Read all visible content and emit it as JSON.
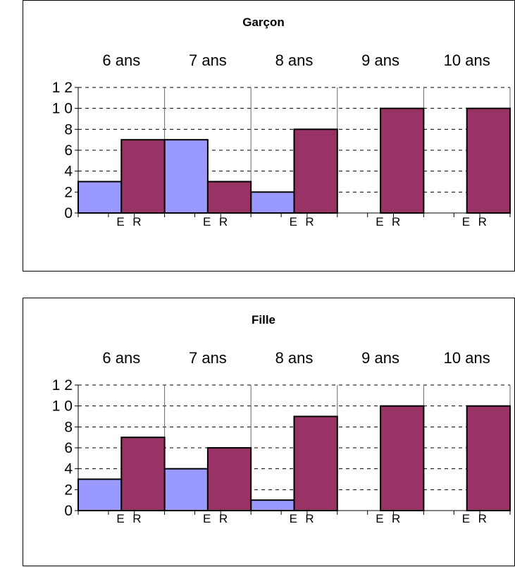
{
  "chart_data": [
    {
      "type": "bar",
      "title": "Garçon",
      "categories": [
        "6 ans",
        "7 ans",
        "8 ans",
        "9 ans",
        "10 ans"
      ],
      "sub_labels": [
        "E",
        "R"
      ],
      "series": [
        {
          "values": [
            3,
            7,
            2,
            0,
            0
          ]
        },
        {
          "values": [
            7,
            3,
            8,
            10,
            10
          ]
        }
      ],
      "ylim": [
        0,
        12
      ],
      "yticks": [
        "0",
        "2",
        "4",
        "6",
        "8",
        "1 0",
        "1 2"
      ],
      "grid": true,
      "colors": {
        "E": "#9999ff",
        "R": "#993366"
      }
    },
    {
      "type": "bar",
      "title": "Fille",
      "categories": [
        "6 ans",
        "7 ans",
        "8 ans",
        "9 ans",
        "10 ans"
      ],
      "sub_labels": [
        "E",
        "R"
      ],
      "series": [
        {
          "values": [
            3,
            4,
            1,
            0,
            0
          ]
        },
        {
          "values": [
            7,
            6,
            9,
            10,
            10
          ]
        }
      ],
      "ylim": [
        0,
        12
      ],
      "yticks": [
        "0",
        "2",
        "4",
        "6",
        "8",
        "1 0",
        "1 2"
      ],
      "grid": true,
      "colors": {
        "E": "#9999ff",
        "R": "#993366"
      }
    }
  ]
}
